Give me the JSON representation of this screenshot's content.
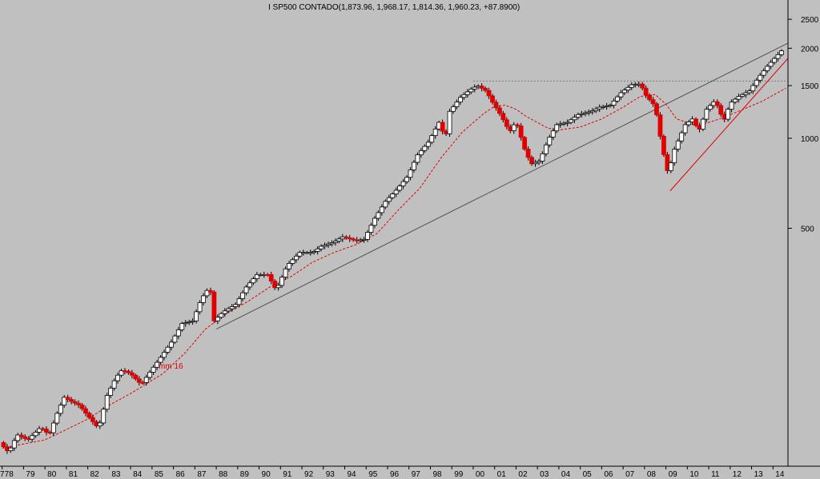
{
  "chart_data": {
    "type": "candlestick",
    "title": "I SP500 CONTADO(1,873.96, 1,968.17, 1,814.36, 1,960.23, +87.8900)",
    "y_scale": "log",
    "ylim": [
      80,
      2900
    ],
    "y_ticks": [
      500,
      1000,
      1500,
      2000,
      2500
    ],
    "x_labels": [
      "78",
      "79",
      "80",
      "81",
      "82",
      "83",
      "84",
      "85",
      "86",
      "87",
      "88",
      "89",
      "90",
      "91",
      "92",
      "93",
      "94",
      "95",
      "96",
      "97",
      "98",
      "99",
      "00",
      "01",
      "02",
      "03",
      "04",
      "05",
      "06",
      "07",
      "08",
      "09",
      "10",
      "11",
      "12",
      "13",
      "14"
    ],
    "x_start_label": "7",
    "xlim": [
      1977.9,
      2014.7
    ],
    "grid": false,
    "colors": {
      "background": "#c0c0c0",
      "up_fill": "#ffffff",
      "down_fill": "#e00000",
      "wick": "#000000",
      "ma": "#e00000",
      "trendline": "#505050",
      "support": "#e00000",
      "resistance": "#7a7a7a"
    },
    "moving_average": {
      "name": "mm 16",
      "style": "dashed",
      "color": "#e00000"
    },
    "resistance_level": 1553,
    "trend_line": {
      "from": [
        1988.0,
        230
      ],
      "to": [
        2014.7,
        2080
      ]
    },
    "support_line": {
      "from": [
        2009.2,
        667
      ],
      "to": [
        2014.7,
        1850
      ]
    },
    "anchors": [
      {
        "t": 1977.9,
        "c": 96
      },
      {
        "t": 1978.3,
        "c": 89
      },
      {
        "t": 1978.7,
        "c": 102
      },
      {
        "t": 1979.2,
        "c": 98
      },
      {
        "t": 1979.8,
        "c": 108
      },
      {
        "t": 1980.2,
        "c": 102
      },
      {
        "t": 1980.6,
        "c": 122
      },
      {
        "t": 1980.9,
        "c": 136
      },
      {
        "t": 1981.2,
        "c": 132
      },
      {
        "t": 1981.6,
        "c": 128
      },
      {
        "t": 1982.0,
        "c": 118
      },
      {
        "t": 1982.5,
        "c": 107
      },
      {
        "t": 1982.9,
        "c": 138
      },
      {
        "t": 1983.3,
        "c": 158
      },
      {
        "t": 1983.6,
        "c": 168
      },
      {
        "t": 1984.0,
        "c": 163
      },
      {
        "t": 1984.5,
        "c": 150
      },
      {
        "t": 1984.9,
        "c": 165
      },
      {
        "t": 1985.4,
        "c": 185
      },
      {
        "t": 1985.9,
        "c": 208
      },
      {
        "t": 1986.4,
        "c": 240
      },
      {
        "t": 1986.9,
        "c": 245
      },
      {
        "t": 1987.3,
        "c": 290
      },
      {
        "t": 1987.7,
        "c": 320
      },
      {
        "t": 1987.9,
        "c": 245
      },
      {
        "t": 1988.3,
        "c": 262
      },
      {
        "t": 1988.9,
        "c": 278
      },
      {
        "t": 1989.4,
        "c": 318
      },
      {
        "t": 1989.9,
        "c": 350
      },
      {
        "t": 1990.4,
        "c": 350
      },
      {
        "t": 1990.8,
        "c": 310
      },
      {
        "t": 1991.3,
        "c": 375
      },
      {
        "t": 1991.9,
        "c": 415
      },
      {
        "t": 1992.5,
        "c": 415
      },
      {
        "t": 1992.9,
        "c": 435
      },
      {
        "t": 1993.5,
        "c": 450
      },
      {
        "t": 1993.9,
        "c": 468
      },
      {
        "t": 1994.5,
        "c": 455
      },
      {
        "t": 1994.9,
        "c": 459
      },
      {
        "t": 1995.4,
        "c": 540
      },
      {
        "t": 1995.9,
        "c": 615
      },
      {
        "t": 1996.4,
        "c": 670
      },
      {
        "t": 1996.9,
        "c": 740
      },
      {
        "t": 1997.4,
        "c": 880
      },
      {
        "t": 1997.9,
        "c": 970
      },
      {
        "t": 1998.4,
        "c": 1130
      },
      {
        "t": 1998.7,
        "c": 1000
      },
      {
        "t": 1998.9,
        "c": 1230
      },
      {
        "t": 1999.4,
        "c": 1370
      },
      {
        "t": 1999.9,
        "c": 1460
      },
      {
        "t": 2000.2,
        "c": 1500
      },
      {
        "t": 2000.6,
        "c": 1440
      },
      {
        "t": 2000.9,
        "c": 1320
      },
      {
        "t": 2001.3,
        "c": 1190
      },
      {
        "t": 2001.7,
        "c": 1050
      },
      {
        "t": 2002.0,
        "c": 1140
      },
      {
        "t": 2002.4,
        "c": 920
      },
      {
        "t": 2002.7,
        "c": 820
      },
      {
        "t": 2003.1,
        "c": 840
      },
      {
        "t": 2003.5,
        "c": 990
      },
      {
        "t": 2003.9,
        "c": 1110
      },
      {
        "t": 2004.4,
        "c": 1130
      },
      {
        "t": 2004.9,
        "c": 1200
      },
      {
        "t": 2005.5,
        "c": 1230
      },
      {
        "t": 2005.9,
        "c": 1270
      },
      {
        "t": 2006.4,
        "c": 1290
      },
      {
        "t": 2006.9,
        "c": 1420
      },
      {
        "t": 2007.4,
        "c": 1510
      },
      {
        "t": 2007.8,
        "c": 1520
      },
      {
        "t": 2008.1,
        "c": 1380
      },
      {
        "t": 2008.5,
        "c": 1280
      },
      {
        "t": 2008.8,
        "c": 950
      },
      {
        "t": 2009.1,
        "c": 760
      },
      {
        "t": 2009.4,
        "c": 920
      },
      {
        "t": 2009.9,
        "c": 1110
      },
      {
        "t": 2010.3,
        "c": 1170
      },
      {
        "t": 2010.5,
        "c": 1040
      },
      {
        "t": 2010.9,
        "c": 1250
      },
      {
        "t": 2011.3,
        "c": 1340
      },
      {
        "t": 2011.7,
        "c": 1140
      },
      {
        "t": 2012.0,
        "c": 1310
      },
      {
        "t": 2012.4,
        "c": 1380
      },
      {
        "t": 2012.9,
        "c": 1440
      },
      {
        "t": 2013.3,
        "c": 1590
      },
      {
        "t": 2013.7,
        "c": 1730
      },
      {
        "t": 2014.1,
        "c": 1860
      },
      {
        "t": 2014.4,
        "c": 1960
      }
    ],
    "ma_anchors": [
      {
        "t": 1978.0,
        "v": 92
      },
      {
        "t": 1980.0,
        "v": 98
      },
      {
        "t": 1982.0,
        "v": 115
      },
      {
        "t": 1983.0,
        "v": 128
      },
      {
        "t": 1984.0,
        "v": 140
      },
      {
        "t": 1985.0,
        "v": 155
      },
      {
        "t": 1985.5,
        "v": 163
      },
      {
        "t": 1986.5,
        "v": 190
      },
      {
        "t": 1987.5,
        "v": 230
      },
      {
        "t": 1988.5,
        "v": 260
      },
      {
        "t": 1989.5,
        "v": 285
      },
      {
        "t": 1990.5,
        "v": 318
      },
      {
        "t": 1991.5,
        "v": 345
      },
      {
        "t": 1992.5,
        "v": 385
      },
      {
        "t": 1993.5,
        "v": 415
      },
      {
        "t": 1994.5,
        "v": 440
      },
      {
        "t": 1995.5,
        "v": 480
      },
      {
        "t": 1996.5,
        "v": 575
      },
      {
        "t": 1997.5,
        "v": 680
      },
      {
        "t": 1998.5,
        "v": 860
      },
      {
        "t": 1999.5,
        "v": 1050
      },
      {
        "t": 2000.5,
        "v": 1210
      },
      {
        "t": 2001.0,
        "v": 1280
      },
      {
        "t": 2001.5,
        "v": 1290
      },
      {
        "t": 2002.0,
        "v": 1250
      },
      {
        "t": 2002.5,
        "v": 1180
      },
      {
        "t": 2003.5,
        "v": 1080
      },
      {
        "t": 2004.0,
        "v": 1065
      },
      {
        "t": 2005.0,
        "v": 1090
      },
      {
        "t": 2006.0,
        "v": 1160
      },
      {
        "t": 2007.0,
        "v": 1270
      },
      {
        "t": 2007.8,
        "v": 1380
      },
      {
        "t": 2008.5,
        "v": 1400
      },
      {
        "t": 2009.0,
        "v": 1300
      },
      {
        "t": 2009.5,
        "v": 1160
      },
      {
        "t": 2010.5,
        "v": 1100
      },
      {
        "t": 2011.5,
        "v": 1160
      },
      {
        "t": 2012.5,
        "v": 1240
      },
      {
        "t": 2013.5,
        "v": 1330
      },
      {
        "t": 2014.6,
        "v": 1470
      }
    ]
  }
}
